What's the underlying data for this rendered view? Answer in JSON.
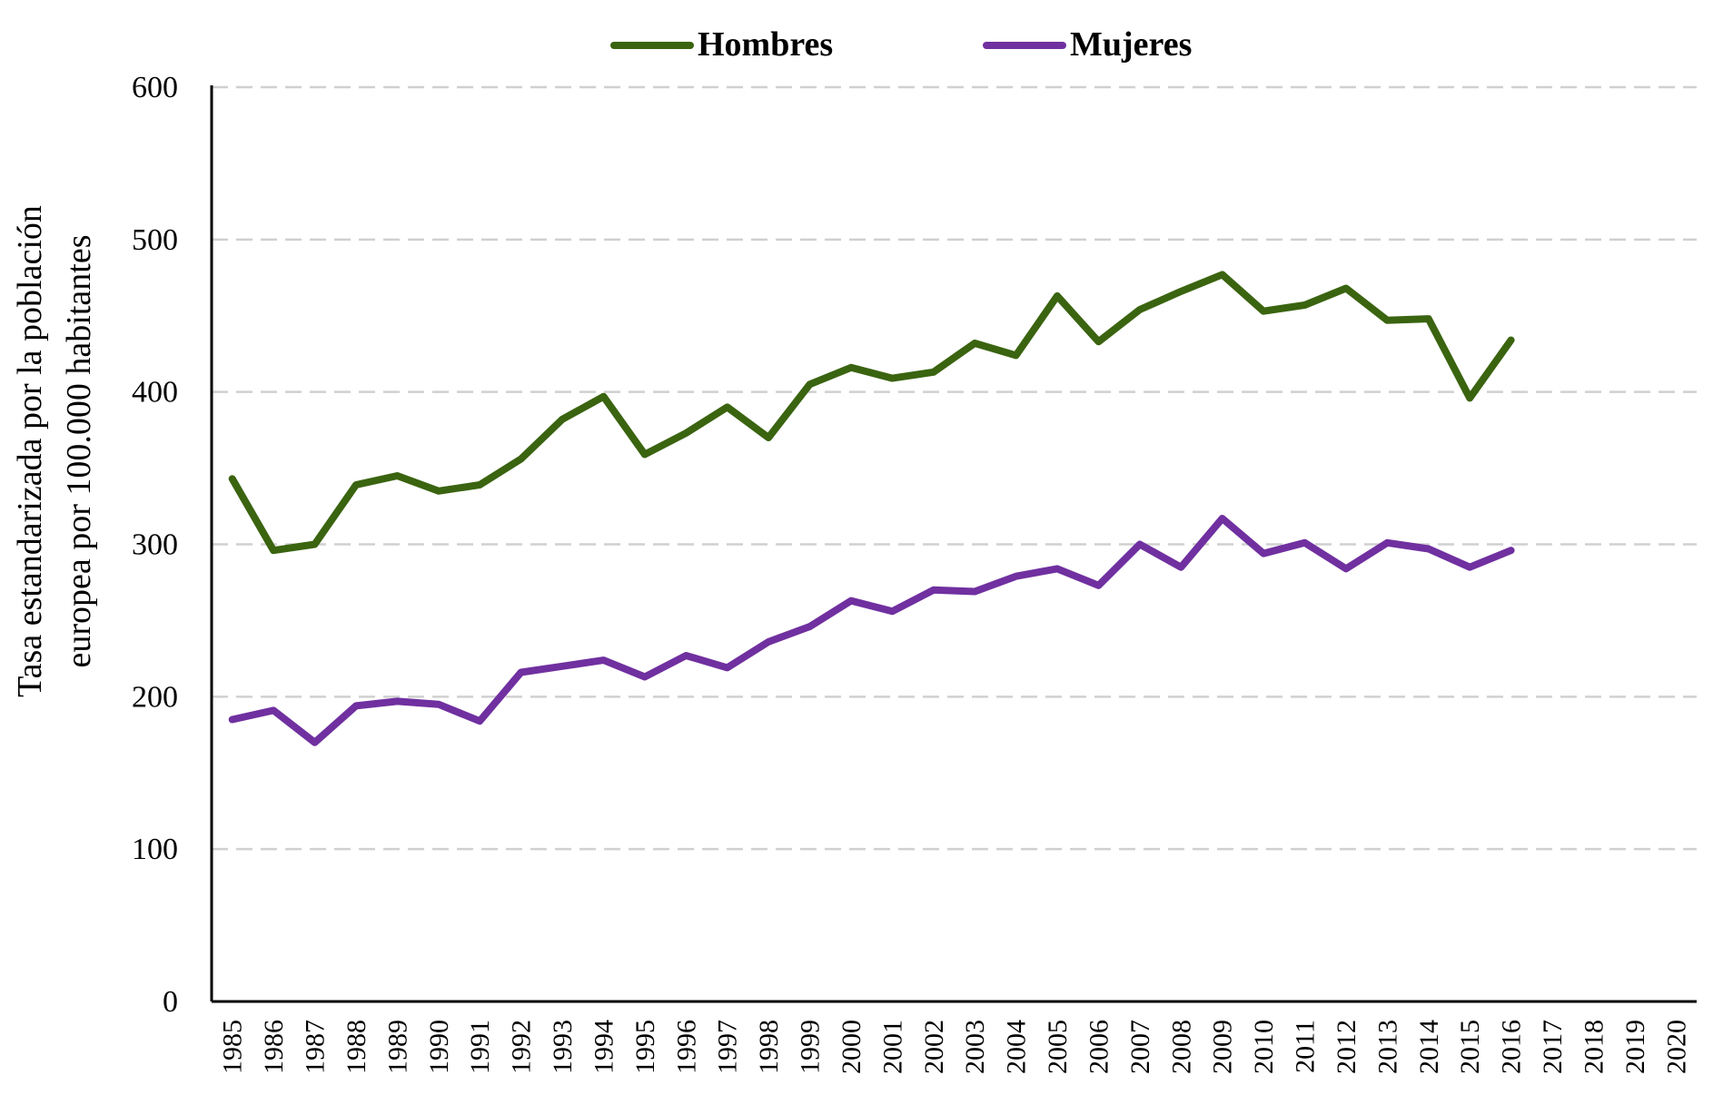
{
  "chart_data": {
    "type": "line",
    "title": "",
    "xlabel": "",
    "ylabel_lines": [
      "Tasa estandarizada por la población",
      "europea por 100.000 habitantes"
    ],
    "ylim": [
      0,
      600
    ],
    "yticks": [
      0,
      100,
      200,
      300,
      400,
      500,
      600
    ],
    "grid": true,
    "legend_position": "top-center",
    "x": [
      "1985",
      "1986",
      "1987",
      "1988",
      "1989",
      "1990",
      "1991",
      "1992",
      "1993",
      "1994",
      "1995",
      "1996",
      "1997",
      "1998",
      "1999",
      "2000",
      "2001",
      "2002",
      "2003",
      "2004",
      "2005",
      "2006",
      "2007",
      "2008",
      "2009",
      "2010",
      "2011",
      "2012",
      "2013",
      "2014",
      "2015",
      "2016",
      "2017",
      "2018",
      "2019",
      "2020"
    ],
    "series": [
      {
        "name": "Hombres",
        "color": "#3A6410",
        "values": [
          343,
          296,
          300,
          339,
          345,
          335,
          339,
          356,
          382,
          397,
          359,
          373,
          390,
          370,
          405,
          416,
          409,
          413,
          432,
          424,
          463,
          433,
          454,
          466,
          477,
          453,
          457,
          468,
          447,
          448,
          396,
          434,
          null,
          null,
          null,
          null
        ]
      },
      {
        "name": "Mujeres",
        "color": "#7030A0",
        "values": [
          185,
          191,
          170,
          194,
          197,
          195,
          184,
          216,
          220,
          224,
          213,
          227,
          219,
          236,
          246,
          263,
          256,
          270,
          269,
          279,
          284,
          273,
          300,
          285,
          317,
          294,
          301,
          284,
          301,
          297,
          285,
          296,
          null,
          null,
          null,
          null
        ]
      }
    ]
  }
}
